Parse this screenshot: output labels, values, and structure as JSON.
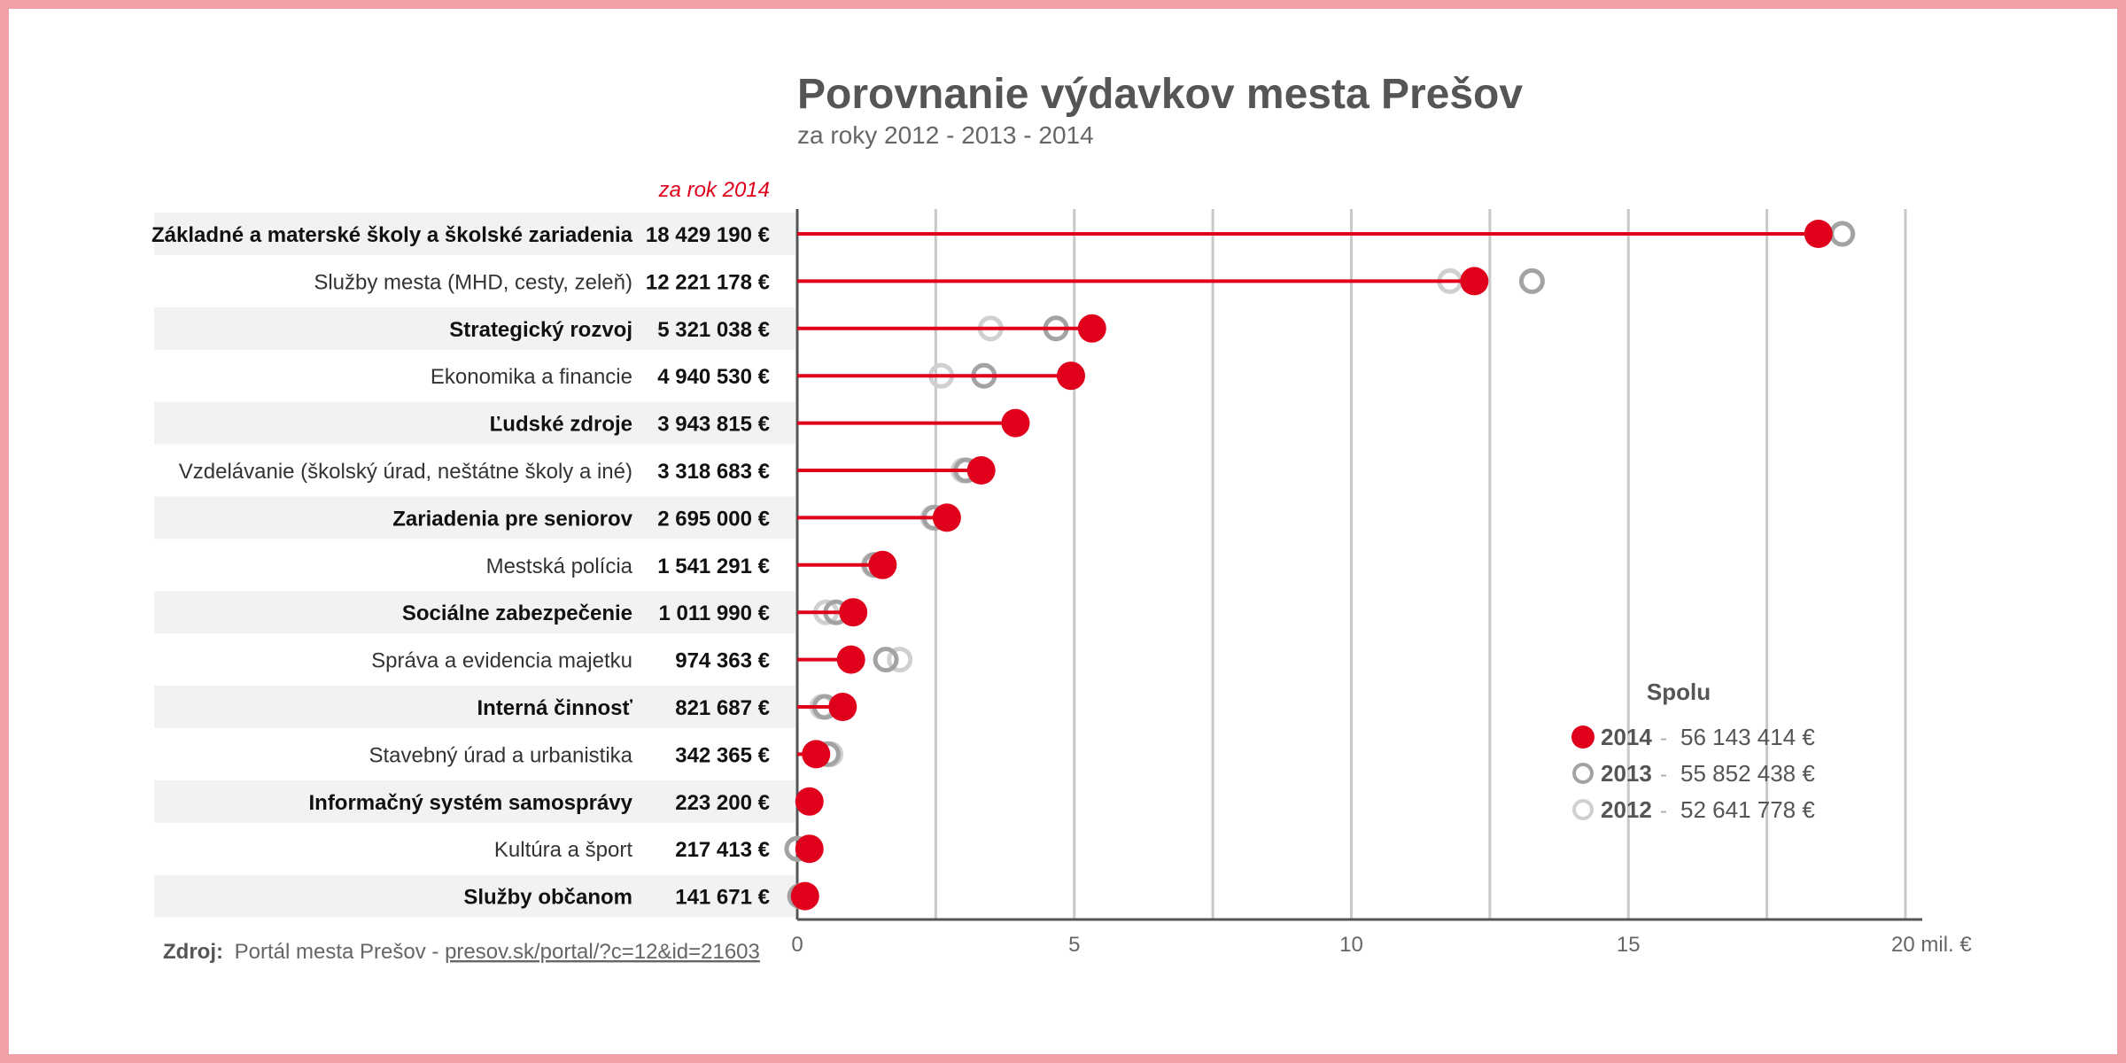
{
  "chart_data": {
    "type": "dot-plot",
    "title": "Porovnanie výdavkov mesta Prešov",
    "subtitle": "za roky 2012 - 2013 - 2014",
    "value_column_header": "za rok 2014",
    "x_axis": {
      "min": 0,
      "max": 20,
      "ticks": [
        0,
        5,
        10,
        15,
        20
      ],
      "tick_labels": [
        "0",
        "5",
        "10",
        "15",
        "20 mil. €"
      ],
      "minor_gridlines": [
        2.5,
        7.5,
        12.5,
        17.5
      ]
    },
    "categories": [
      {
        "label": "Základné a materské školy a školské zariadenia",
        "value_label": "18 429 190 €",
        "v2014": 18.43,
        "v2013": 18.86,
        "v2012": 18.86
      },
      {
        "label": "Služby mesta (MHD, cesty, zeleň)",
        "value_label": "12 221 178 €",
        "v2014": 12.22,
        "v2013": 13.26,
        "v2012": 11.78
      },
      {
        "label": "Strategický rozvoj",
        "value_label": "5 321 038 €",
        "v2014": 5.32,
        "v2013": 4.67,
        "v2012": 3.49
      },
      {
        "label": "Ekonomika a financie",
        "value_label": "4 940 530 €",
        "v2014": 4.94,
        "v2013": 3.37,
        "v2012": 2.6
      },
      {
        "label": "Ľudské zdroje",
        "value_label": "3 943 815 €",
        "v2014": 3.94,
        "v2013": null,
        "v2012": null
      },
      {
        "label": "Vzdelávanie (školský úrad, neštátne školy a iné)",
        "value_label": "3 318 683 €",
        "v2014": 3.32,
        "v2013": 3.05,
        "v2012": 3.0
      },
      {
        "label": "Zariadenia pre seniorov",
        "value_label": "2 695 000 €",
        "v2014": 2.7,
        "v2013": 2.48,
        "v2012": 2.45
      },
      {
        "label": "Mestská polícia",
        "value_label": "1 541 291 €",
        "v2014": 1.54,
        "v2013": 1.4,
        "v2012": 1.38
      },
      {
        "label": "Sociálne zabezpečenie",
        "value_label": "1 011 990 €",
        "v2014": 1.01,
        "v2013": 0.7,
        "v2012": 0.52
      },
      {
        "label": "Správa a evidencia majetku",
        "value_label": "974 363 €",
        "v2014": 0.97,
        "v2013": 1.6,
        "v2012": 1.85
      },
      {
        "label": "Interná činnosť",
        "value_label": "821 687 €",
        "v2014": 0.82,
        "v2013": 0.5,
        "v2012": 0.45
      },
      {
        "label": "Stavebný úrad a urbanistika",
        "value_label": "342 365 €",
        "v2014": 0.34,
        "v2013": 0.55,
        "v2012": 0.6
      },
      {
        "label": "Informačný systém samosprávy",
        "value_label": "223 200 €",
        "v2014": 0.22,
        "v2013": 0.2,
        "v2012": 0.2
      },
      {
        "label": "Kultúra a šport",
        "value_label": "217 413 €",
        "v2014": 0.22,
        "v2013": 0.0,
        "v2012": 0.0
      },
      {
        "label": "Služby občanom",
        "value_label": "141 671 €",
        "v2014": 0.14,
        "v2013": 0.05,
        "v2012": 0.05
      }
    ],
    "bold_rows": [
      0,
      2,
      4,
      6,
      8,
      10,
      12,
      14
    ],
    "legend": {
      "title": "Spolu",
      "position": "bottom-right",
      "entries": [
        {
          "year": "2014",
          "total": "56 143 414 €",
          "marker": "filled"
        },
        {
          "year": "2013",
          "total": "55 852 438 €",
          "marker": "ring-dark"
        },
        {
          "year": "2012",
          "total": "52 641 778 €",
          "marker": "ring-light"
        }
      ],
      "separator": "-"
    },
    "source": {
      "label": "Zdroj:",
      "text": "Portál mesta Prešov - ",
      "link": "presov.sk/portal/?c=12&id=21603"
    },
    "colors": {
      "accent": "#e0001b",
      "ring_2013": "#a3a3a3",
      "ring_2012": "#d0d0d0",
      "stripe": "#f2f2f2",
      "gridline": "#c8c8c8",
      "frame": "#f0a0a6"
    }
  }
}
